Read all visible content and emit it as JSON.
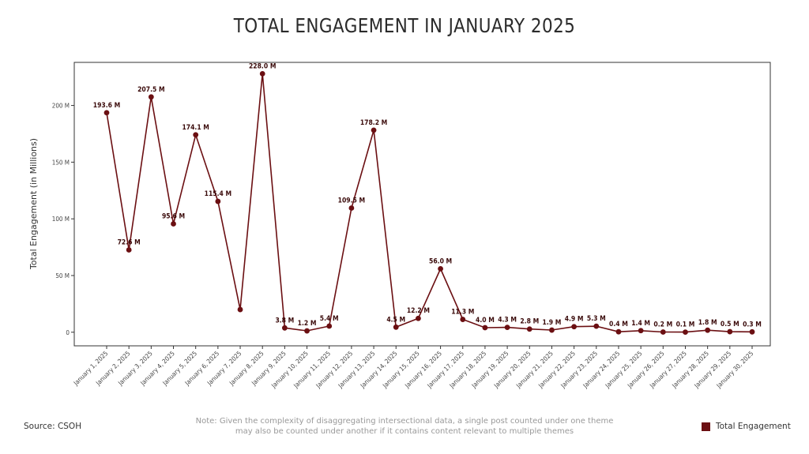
{
  "colors": {
    "series": "#6b0f12",
    "axis": "#333333"
  },
  "footer": {
    "source": "Source: CSOH",
    "note": "Note: Given the complexity of disaggregating intersectional data, a single post counted under one theme may also be counted under another if it contains content relevant to multiple themes"
  },
  "chart_data": {
    "type": "line",
    "title": "TOTAL ENGAGEMENT IN JANUARY 2025",
    "ylabel": "Total Engagement (in Millions)",
    "xlabel": "",
    "ylim": [
      -12,
      238
    ],
    "yticks": [
      0,
      50,
      100,
      150,
      200
    ],
    "ytick_labels": [
      "0",
      "50 M",
      "100 M",
      "150 M",
      "200 M"
    ],
    "grid": false,
    "legend": "bottom-right",
    "categories": [
      "January 1, 2025",
      "January 2, 2025",
      "January 3, 2025",
      "January 4, 2025",
      "January 5, 2025",
      "January 6, 2025",
      "January 7, 2025",
      "January 8, 2025",
      "January 9, 2025",
      "January 10, 2025",
      "January 11, 2025",
      "January 12, 2025",
      "January 13, 2025",
      "January 14, 2025",
      "January 15, 2025",
      "January 16, 2025",
      "January 17, 2025",
      "January 18, 2025",
      "January 19, 2025",
      "January 20, 2025",
      "January 21, 2025",
      "January 22, 2025",
      "January 23, 2025",
      "January 24, 2025",
      "January 25, 2025",
      "January 26, 2025",
      "January 27, 2025",
      "January 28, 2025",
      "January 29, 2025",
      "January 30, 2025"
    ],
    "series": [
      {
        "name": "Total Engagement",
        "values": [
          193.6,
          72.6,
          207.5,
          95.6,
          174.1,
          115.4,
          20.0,
          228.0,
          3.8,
          1.2,
          5.4,
          109.5,
          178.2,
          4.5,
          12.2,
          56.0,
          11.3,
          4.0,
          4.3,
          2.8,
          1.9,
          4.9,
          5.3,
          0.4,
          1.4,
          0.2,
          0.1,
          1.8,
          0.5,
          0.3
        ],
        "labels": [
          "193.6 M",
          "72.6 M",
          "207.5 M",
          "95.6 M",
          "174.1 M",
          "115.4 M",
          "",
          "228.0 M",
          "3.8 M",
          "1.2 M",
          "5.4 M",
          "109.5 M",
          "178.2 M",
          "4.5 M",
          "12.2 M",
          "56.0 M",
          "11.3 M",
          "4.0 M",
          "4.3 M",
          "2.8 M",
          "1.9 M",
          "4.9 M",
          "5.3 M",
          "0.4 M",
          "1.4 M",
          "0.2 M",
          "0.1 M",
          "1.8 M",
          "0.5 M",
          "0.3 M"
        ]
      }
    ]
  }
}
